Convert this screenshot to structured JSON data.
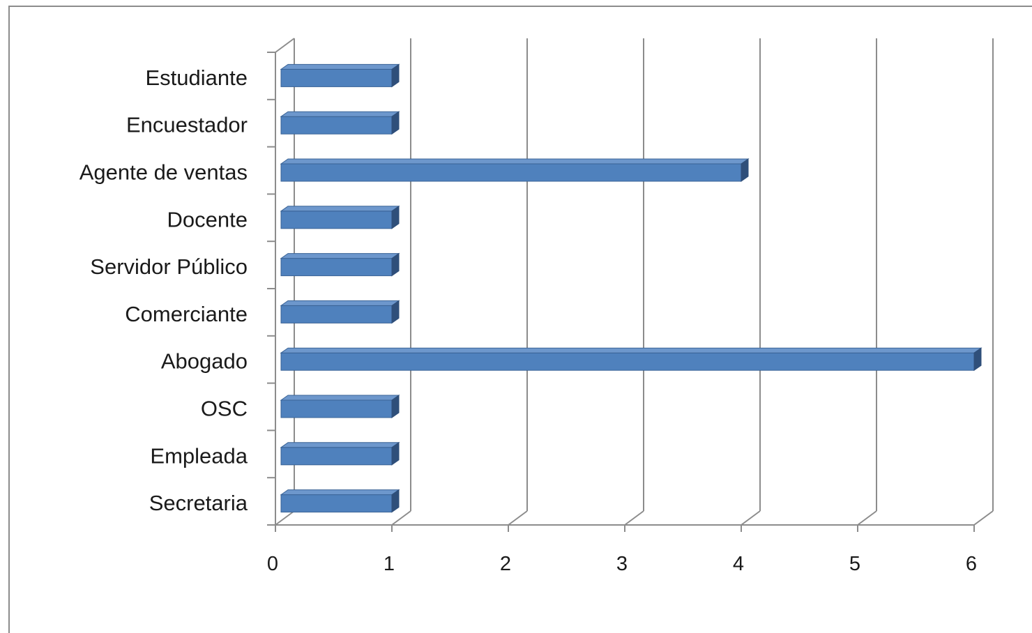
{
  "chart_data": {
    "type": "bar",
    "orientation": "horizontal",
    "title": "",
    "xlabel": "",
    "ylabel": "",
    "categories": [
      "Estudiante",
      "Encuestador",
      "Agente de ventas",
      "Docente",
      "Servidor Público",
      "Comerciante",
      "Abogado",
      "OSC",
      "Empleada",
      "Secretaria"
    ],
    "values": [
      1,
      1,
      4,
      1,
      1,
      1,
      6,
      1,
      1,
      1
    ],
    "xlim": [
      0,
      6
    ],
    "xticks": [
      "0",
      "1",
      "2",
      "3",
      "4",
      "5",
      "6"
    ],
    "grid": true,
    "legend": "none",
    "colors": {
      "bar_front": "#4f81bd",
      "bar_top": "#6d97cc",
      "bar_side": "#2f4f7a",
      "bar_edge": "#3a6396",
      "gridline": "#8c8c8c",
      "text": "#1a1a1a"
    }
  }
}
